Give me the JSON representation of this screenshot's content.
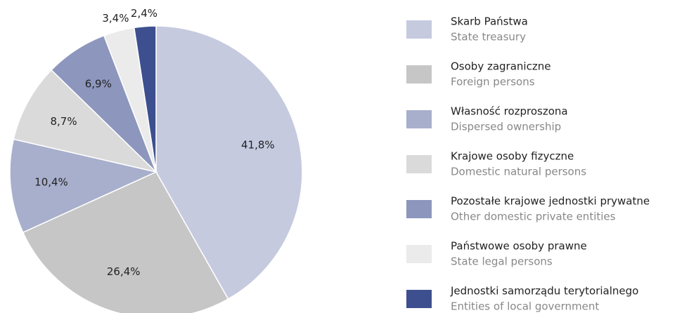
{
  "chart_data": {
    "type": "pie",
    "categories": [
      "Skarb Państwa",
      "Osoby zagraniczne",
      "Własność rozproszona",
      "Krajowe osoby fizyczne",
      "Pozostałe krajowe jednostki prywatne",
      "Państwowe osoby prawne",
      "Jednostki samorządu terytorialnego"
    ],
    "categories_en": [
      "State treasury",
      "Foreign persons",
      "Dispersed ownership",
      "Domestic natural persons",
      "Other domestic private entities",
      "State legal persons",
      "Entities of local government"
    ],
    "values": [
      41.8,
      26.4,
      10.4,
      8.7,
      6.9,
      3.4,
      2.4
    ],
    "value_labels": [
      "41,8%",
      "26,4%",
      "10,4%",
      "8,7%",
      "6,9%",
      "3,4%",
      "2,4%"
    ],
    "colors": [
      "#c5cadf",
      "#c6c6c6",
      "#a8afcc",
      "#dadada",
      "#8d96bd",
      "#ebebeb",
      "#3d4f8e"
    ]
  }
}
